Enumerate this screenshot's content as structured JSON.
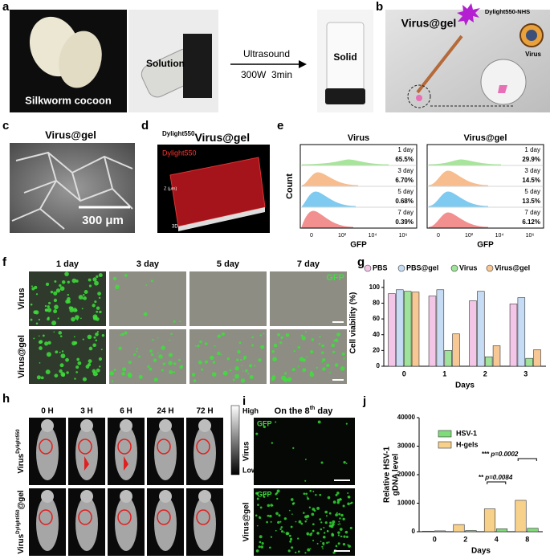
{
  "panels": {
    "a": {
      "label": "a",
      "cocoon": "Silkworm cocoon",
      "solution": "Solution",
      "process": "Ultrasound",
      "conditions": "300W  3min",
      "solid": "Solid"
    },
    "b": {
      "label": "b",
      "title": "Virus@gel",
      "reagent": "Dylight550-NHS",
      "virus": "Virus"
    },
    "c": {
      "label": "c",
      "title": "Virus@gel",
      "scale": "300 μm"
    },
    "d": {
      "label": "d",
      "title_sup": "Dylight550",
      "title": "Virus@gel",
      "channel": "Dylight550",
      "z_axis": "Z (μm)",
      "view": "3D"
    },
    "e": {
      "label": "e",
      "ylabel": "Count",
      "xlabel": "GFP",
      "xticks": [
        "0",
        "10²",
        "10⁴",
        "10⁶"
      ],
      "groups": [
        {
          "title": "Virus",
          "rows": [
            {
              "day": "1 day",
              "percent": "65.5%"
            },
            {
              "day": "3 day",
              "percent": "6.70%"
            },
            {
              "day": "5 day",
              "percent": "0.68%"
            },
            {
              "day": "7 day",
              "percent": "0.39%"
            }
          ]
        },
        {
          "title": "Virus@gel",
          "rows": [
            {
              "day": "1 day",
              "percent": "29.9%"
            },
            {
              "day": "3 day",
              "percent": "14.5%"
            },
            {
              "day": "5 day",
              "percent": "13.5%"
            },
            {
              "day": "7 day",
              "percent": "6.12%"
            }
          ]
        }
      ]
    },
    "f": {
      "label": "f",
      "days": [
        "1 day",
        "3 day",
        "5 day",
        "7 day"
      ],
      "rows": [
        "Virus",
        "Virus@gel"
      ],
      "channel": "GFP"
    },
    "g": {
      "label": "g"
    },
    "h": {
      "label": "h",
      "times": [
        "0 H",
        "3 H",
        "6 H",
        "24 H",
        "72 H"
      ],
      "high": "High",
      "low": "Low",
      "rows": [
        {
          "base": "Virus",
          "sup": "Dylight550"
        },
        {
          "base": "Virus",
          "sup": "Dylight550",
          "suffix": "@gel"
        }
      ]
    },
    "i": {
      "label": "i",
      "title_pre": "On the 8",
      "title_sup": "th",
      "title_post": " day",
      "channel": "GFP",
      "rows": [
        "Virus",
        "Virus@gel"
      ]
    },
    "j": {
      "label": "j"
    }
  },
  "chart_data": [
    {
      "type": "bar",
      "xlabel": "Days",
      "ylabel": "Cell viability (%)",
      "categories": [
        "0",
        "1",
        "2",
        "3"
      ],
      "series": [
        {
          "name": "PBS",
          "color": "#f3c6e7",
          "values": [
            92,
            89,
            83,
            79
          ]
        },
        {
          "name": "PBS@gel",
          "color": "#c6dcf5",
          "values": [
            97,
            97,
            95,
            87
          ]
        },
        {
          "name": "Virus",
          "color": "#9fe39a",
          "values": [
            95,
            20,
            12,
            10
          ]
        },
        {
          "name": "Virus@gel",
          "color": "#f7c894",
          "values": [
            94,
            41,
            26,
            21
          ]
        }
      ],
      "ylim": [
        0,
        110
      ],
      "yticks": [
        0,
        20,
        40,
        60,
        80,
        100
      ]
    },
    {
      "type": "bar",
      "xlabel": "Days",
      "ylabel": [
        "Relative HSV-1",
        "gDNA level"
      ],
      "categories": [
        "0",
        "2",
        "4",
        "8"
      ],
      "series": [
        {
          "name": "HSV-1",
          "color": "#7fdc7a",
          "values": [
            300,
            400,
            1000,
            1200
          ]
        },
        {
          "name": "H-gels",
          "color": "#f7d08a",
          "values": [
            200,
            2500,
            8000,
            11000
          ]
        }
      ],
      "ylim": [
        0,
        40000
      ],
      "yticks": [
        0,
        10000,
        20000,
        30000,
        40000
      ],
      "annotations": [
        "**",
        "p=0.0084",
        "***",
        "p=0.0002"
      ]
    }
  ]
}
